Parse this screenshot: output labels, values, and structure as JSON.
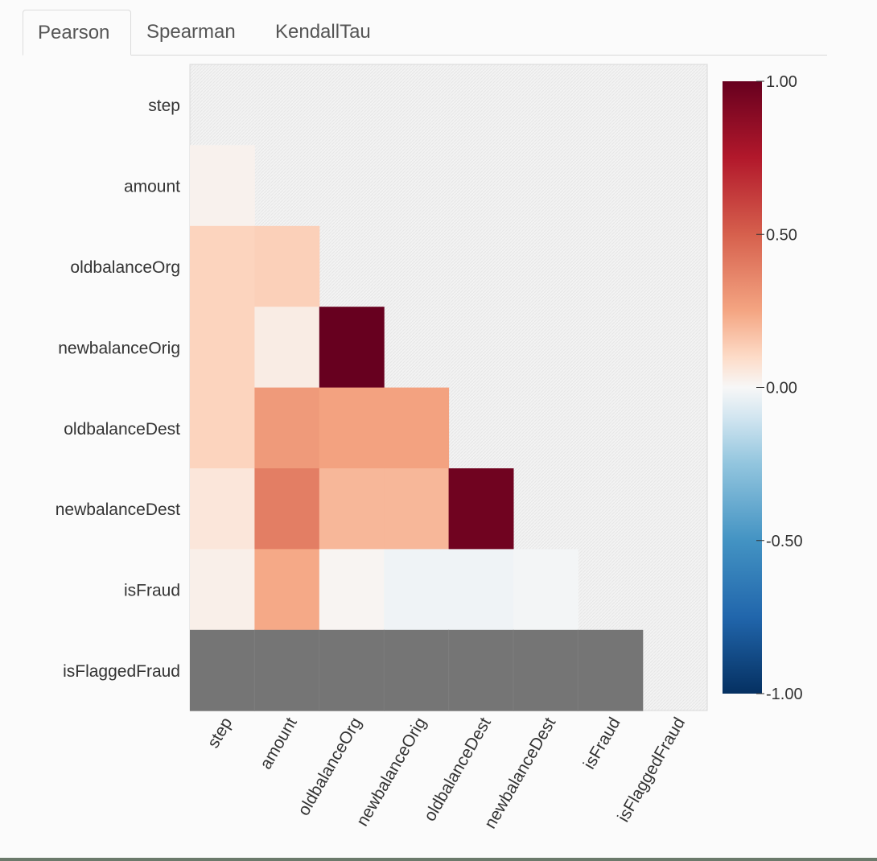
{
  "tabs": [
    {
      "label": "Pearson",
      "active": true
    },
    {
      "label": "Spearman",
      "active": false
    },
    {
      "label": "KendallTau",
      "active": false
    }
  ],
  "colors": {
    "masked": "#eeeeee",
    "nan": "#757575",
    "neg": "#053061",
    "mid": "#f7f7f7",
    "pos": "#67001f"
  },
  "chart_data": {
    "type": "heatmap",
    "title": "",
    "variables": [
      "step",
      "amount",
      "oldbalanceOrg",
      "newbalanceOrig",
      "oldbalanceDest",
      "newbalanceDest",
      "isFraud",
      "isFlaggedFraud"
    ],
    "matrix": [
      [
        null,
        null,
        null,
        null,
        null,
        null,
        null,
        null
      ],
      [
        0.02,
        null,
        null,
        null,
        null,
        null,
        null,
        null
      ],
      [
        0.12,
        0.13,
        null,
        null,
        null,
        null,
        null,
        null
      ],
      [
        0.12,
        0.04,
        1.0,
        null,
        null,
        null,
        null,
        null
      ],
      [
        0.12,
        0.29,
        0.26,
        0.26,
        null,
        null,
        null,
        null
      ],
      [
        0.06,
        0.39,
        0.2,
        0.2,
        0.97,
        null,
        null,
        null
      ],
      [
        0.03,
        0.24,
        0.01,
        -0.02,
        -0.02,
        -0.01,
        null,
        null
      ],
      [
        "nan",
        "nan",
        "nan",
        "nan",
        "nan",
        "nan",
        "nan",
        null
      ]
    ],
    "colorbar": {
      "range": [
        -1.0,
        1.0
      ],
      "ticks": [
        1.0,
        0.5,
        0.0,
        -0.5,
        -1.0
      ],
      "tick_labels": [
        "1.00",
        "0.50",
        "0.00",
        "-0.50",
        "-1.00"
      ]
    }
  }
}
